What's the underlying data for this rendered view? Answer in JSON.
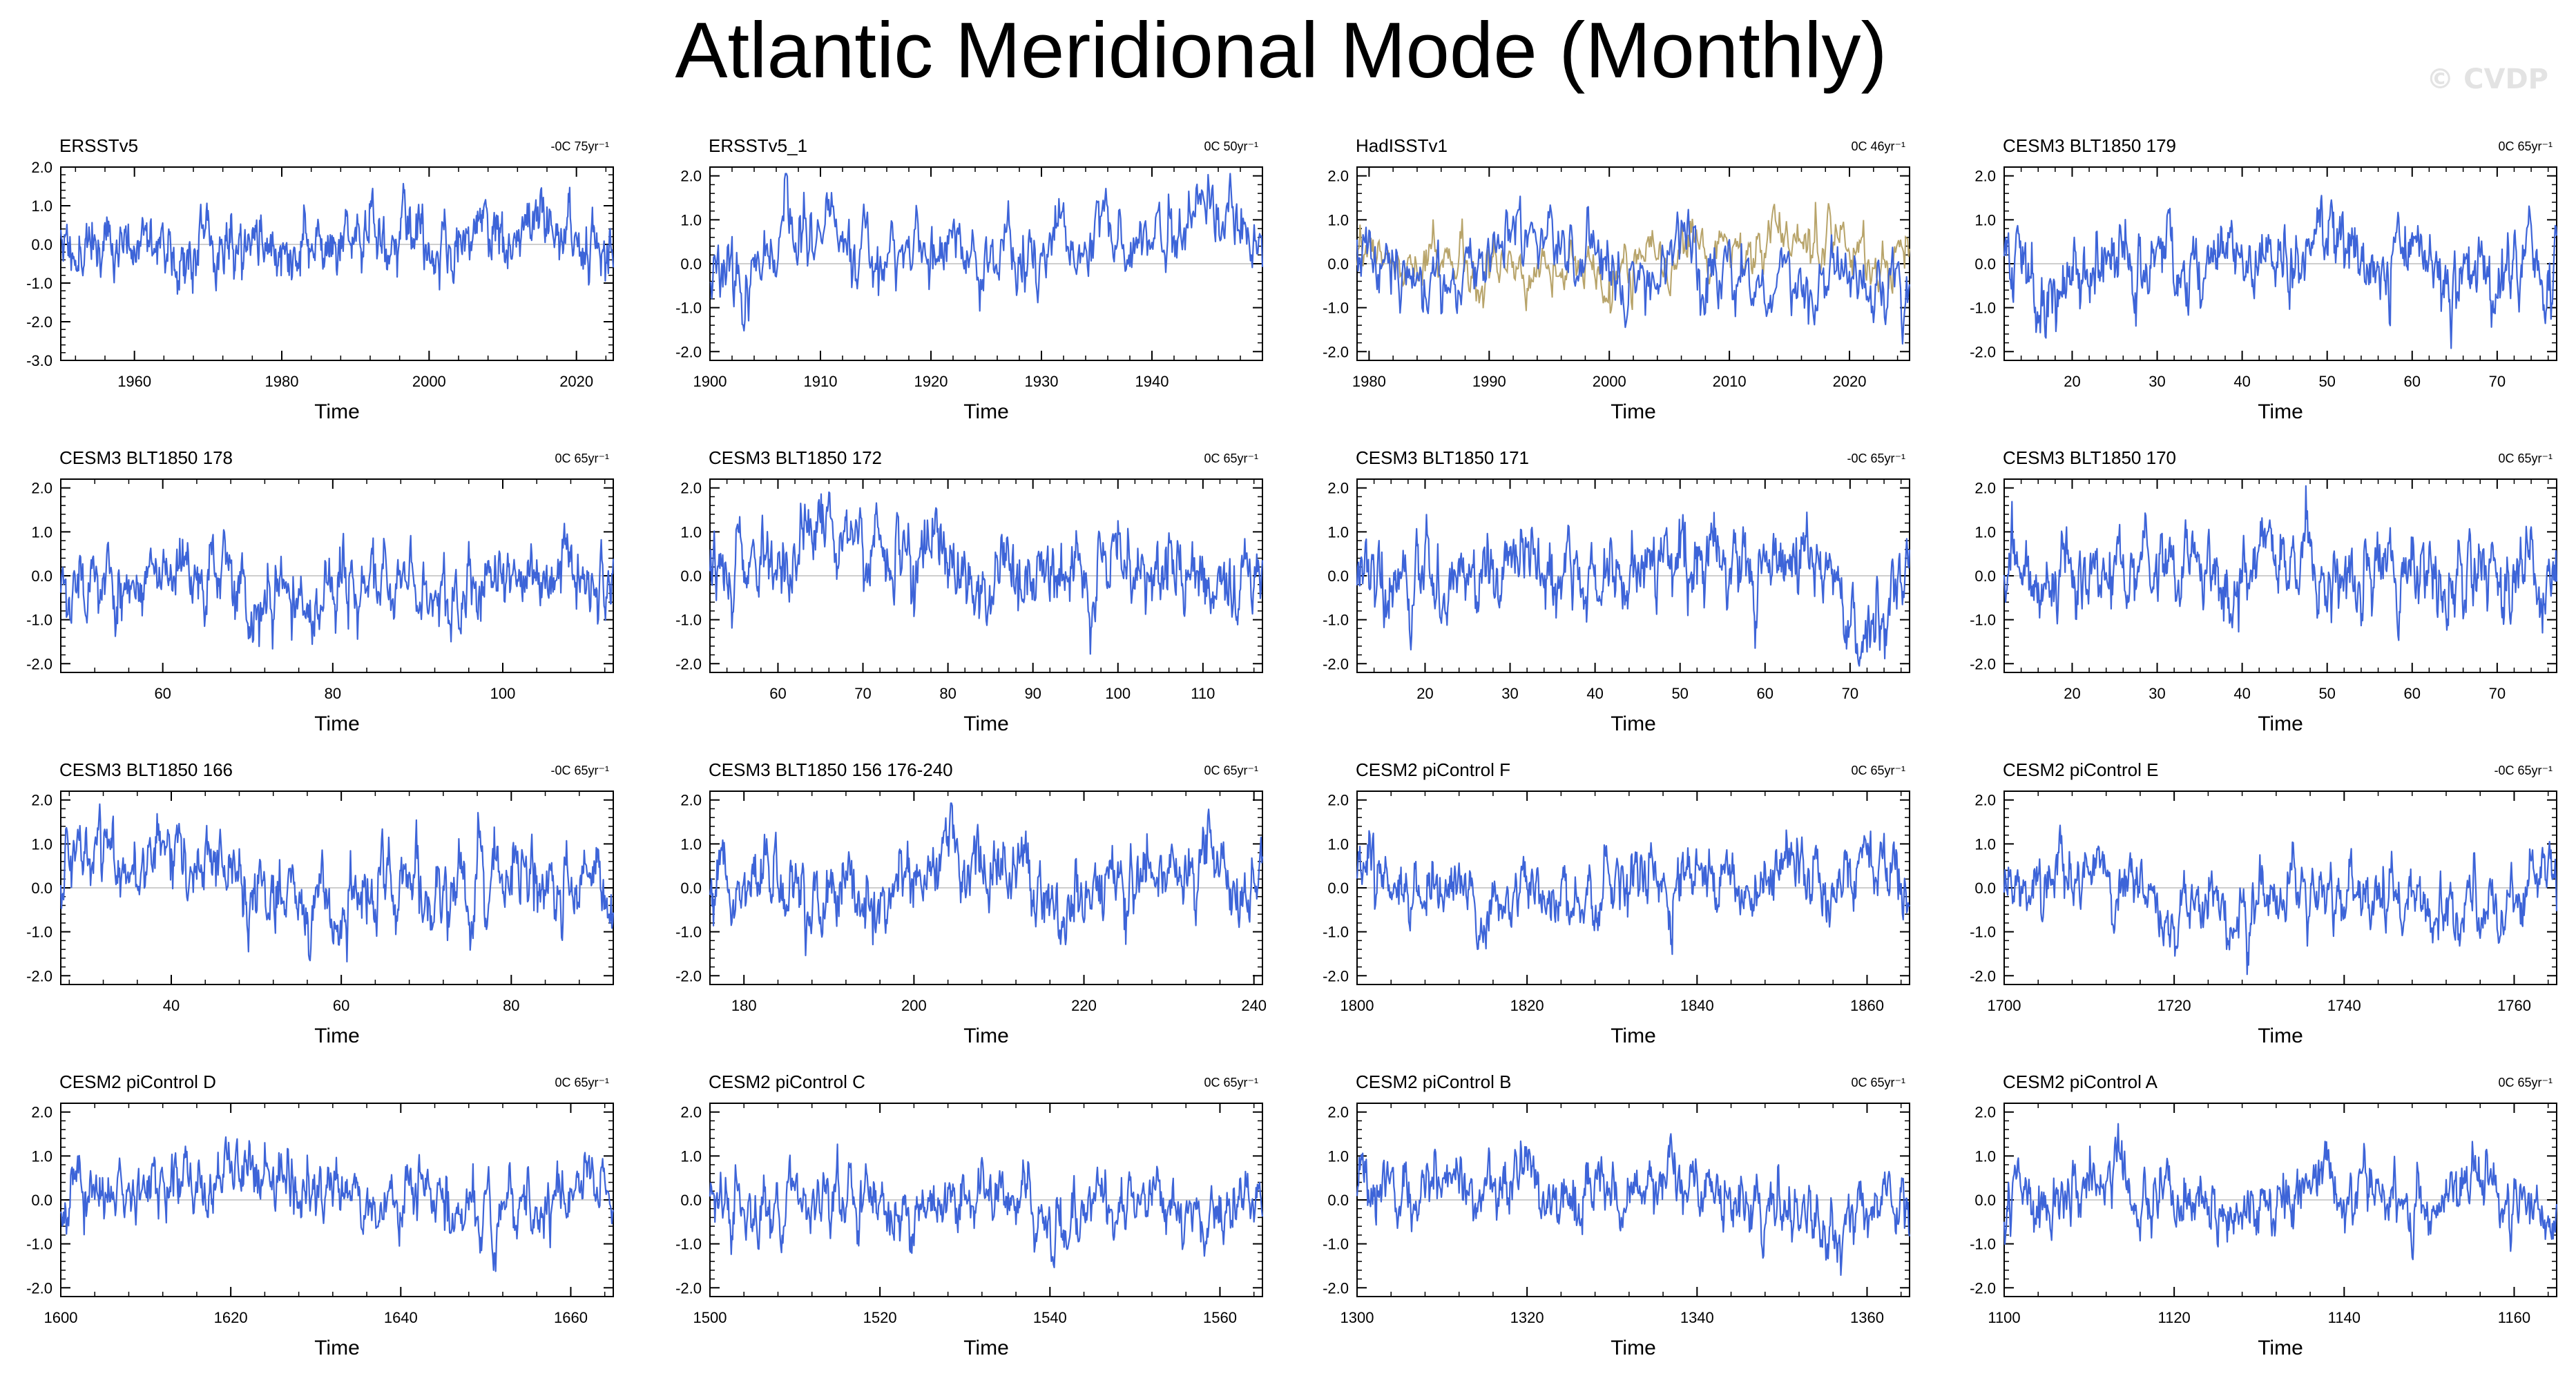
{
  "figure": {
    "title": "Atlantic Meridional Mode (Monthly)",
    "watermark": "© CVDP",
    "line_color": "#3d64d8",
    "obs_overlay_color": "#b8a46a"
  },
  "chart_data": [
    {
      "type": "line",
      "title": "ERSSTv5",
      "trend_label": "-0C 75yr⁻¹",
      "xlabel": "Time",
      "xlim": [
        1950,
        2025
      ],
      "ylim": [
        -3,
        2
      ],
      "yticks": [
        -3,
        -2,
        -1,
        0,
        1,
        2
      ],
      "ytick_labels": [
        "-3.0",
        "-2.0",
        "-1.0",
        "0.0",
        "1.0",
        "2.0"
      ],
      "xticks": [
        1960,
        1980,
        2000,
        2020
      ],
      "xtick_labels": [
        "1960",
        "1980",
        "2000",
        "2020"
      ],
      "amp": 0.55,
      "seed": 11
    },
    {
      "type": "line",
      "title": "ERSSTv5_1",
      "trend_label": "0C 50yr⁻¹",
      "xlabel": "Time",
      "xlim": [
        1900,
        1950
      ],
      "ylim": [
        -2.2,
        2.2
      ],
      "yticks": [
        -2,
        -1,
        0,
        1,
        2
      ],
      "ytick_labels": [
        "-2.0",
        "-1.0",
        "0.0",
        "1.0",
        "2.0"
      ],
      "xticks": [
        1900,
        1910,
        1920,
        1930,
        1940
      ],
      "xtick_labels": [
        "1900",
        "1910",
        "1920",
        "1930",
        "1940"
      ],
      "amp": 0.6,
      "seed": 23
    },
    {
      "type": "line",
      "title": "HadISSTv1",
      "trend_label": "0C 46yr⁻¹",
      "xlabel": "Time",
      "xlim": [
        1979,
        2025
      ],
      "ylim": [
        -2.2,
        2.2
      ],
      "yticks": [
        -2,
        -1,
        0,
        1,
        2
      ],
      "ytick_labels": [
        "-2.0",
        "-1.0",
        "0.0",
        "1.0",
        "2.0"
      ],
      "xticks": [
        1980,
        1990,
        2000,
        2010,
        2020
      ],
      "xtick_labels": [
        "1980",
        "1990",
        "2000",
        "2010",
        "2020"
      ],
      "amp": 0.6,
      "seed": 37,
      "overlay": true
    },
    {
      "type": "line",
      "title": "CESM3 BLT1850 179",
      "trend_label": "0C 65yr⁻¹",
      "xlabel": "Time",
      "xlim": [
        12,
        77
      ],
      "ylim": [
        -2.2,
        2.2
      ],
      "yticks": [
        -2,
        -1,
        0,
        1,
        2
      ],
      "ytick_labels": [
        "-2.0",
        "-1.0",
        "0.0",
        "1.0",
        "2.0"
      ],
      "xticks": [
        20,
        30,
        40,
        50,
        60,
        70
      ],
      "xtick_labels": [
        "20",
        "30",
        "40",
        "50",
        "60",
        "70"
      ],
      "amp": 0.6,
      "seed": 41
    },
    {
      "type": "line",
      "title": "CESM3 BLT1850 178",
      "trend_label": "0C 65yr⁻¹",
      "xlabel": "Time",
      "xlim": [
        48,
        113
      ],
      "ylim": [
        -2.2,
        2.2
      ],
      "yticks": [
        -2,
        -1,
        0,
        1,
        2
      ],
      "ytick_labels": [
        "-2.0",
        "-1.0",
        "0.0",
        "1.0",
        "2.0"
      ],
      "xticks": [
        60,
        80,
        100
      ],
      "xtick_labels": [
        "60",
        "80",
        "100"
      ],
      "amp": 0.6,
      "seed": 53
    },
    {
      "type": "line",
      "title": "CESM3 BLT1850 172",
      "trend_label": "0C 65yr⁻¹",
      "xlabel": "Time",
      "xlim": [
        52,
        117
      ],
      "ylim": [
        -2.2,
        2.2
      ],
      "yticks": [
        -2,
        -1,
        0,
        1,
        2
      ],
      "ytick_labels": [
        "-2.0",
        "-1.0",
        "0.0",
        "1.0",
        "2.0"
      ],
      "xticks": [
        60,
        70,
        80,
        90,
        100,
        110
      ],
      "xtick_labels": [
        "60",
        "70",
        "80",
        "90",
        "100",
        "110"
      ],
      "amp": 0.6,
      "seed": 67
    },
    {
      "type": "line",
      "title": "CESM3 BLT1850 171",
      "trend_label": "-0C 65yr⁻¹",
      "xlabel": "Time",
      "xlim": [
        12,
        77
      ],
      "ylim": [
        -2.2,
        2.2
      ],
      "yticks": [
        -2,
        -1,
        0,
        1,
        2
      ],
      "ytick_labels": [
        "-2.0",
        "-1.0",
        "0.0",
        "1.0",
        "2.0"
      ],
      "xticks": [
        20,
        30,
        40,
        50,
        60,
        70
      ],
      "xtick_labels": [
        "20",
        "30",
        "40",
        "50",
        "60",
        "70"
      ],
      "amp": 0.6,
      "seed": 79
    },
    {
      "type": "line",
      "title": "CESM3 BLT1850 170",
      "trend_label": "0C 65yr⁻¹",
      "xlabel": "Time",
      "xlim": [
        12,
        77
      ],
      "ylim": [
        -2.2,
        2.2
      ],
      "yticks": [
        -2,
        -1,
        0,
        1,
        2
      ],
      "ytick_labels": [
        "-2.0",
        "-1.0",
        "0.0",
        "1.0",
        "2.0"
      ],
      "xticks": [
        20,
        30,
        40,
        50,
        60,
        70
      ],
      "xtick_labels": [
        "20",
        "30",
        "40",
        "50",
        "60",
        "70"
      ],
      "amp": 0.6,
      "seed": 83
    },
    {
      "type": "line",
      "title": "CESM3 BLT1850 166",
      "trend_label": "-0C 65yr⁻¹",
      "xlabel": "Time",
      "xlim": [
        27,
        92
      ],
      "ylim": [
        -2.2,
        2.2
      ],
      "yticks": [
        -2,
        -1,
        0,
        1,
        2
      ],
      "ytick_labels": [
        "-2.0",
        "-1.0",
        "0.0",
        "1.0",
        "2.0"
      ],
      "xticks": [
        40,
        60,
        80
      ],
      "xtick_labels": [
        "40",
        "60",
        "80"
      ],
      "amp": 0.6,
      "seed": 97
    },
    {
      "type": "line",
      "title": "CESM3 BLT1850 156 176-240",
      "trend_label": "0C 65yr⁻¹",
      "xlabel": "Time",
      "xlim": [
        176,
        241
      ],
      "ylim": [
        -2.2,
        2.2
      ],
      "yticks": [
        -2,
        -1,
        0,
        1,
        2
      ],
      "ytick_labels": [
        "-2.0",
        "-1.0",
        "0.0",
        "1.0",
        "2.0"
      ],
      "xticks": [
        180,
        200,
        220,
        240
      ],
      "xtick_labels": [
        "180",
        "200",
        "220",
        "240"
      ],
      "amp": 0.6,
      "seed": 101
    },
    {
      "type": "line",
      "title": "CESM2 piControl F",
      "trend_label": "0C 65yr⁻¹",
      "xlabel": "Time",
      "xlim": [
        1800,
        1865
      ],
      "ylim": [
        -2.2,
        2.2
      ],
      "yticks": [
        -2,
        -1,
        0,
        1,
        2
      ],
      "ytick_labels": [
        "-2.0",
        "-1.0",
        "0.0",
        "1.0",
        "2.0"
      ],
      "xticks": [
        1800,
        1820,
        1840,
        1860
      ],
      "xtick_labels": [
        "1800",
        "1820",
        "1840",
        "1860"
      ],
      "amp": 0.5,
      "seed": 113
    },
    {
      "type": "line",
      "title": "CESM2 piControl E",
      "trend_label": "-0C 65yr⁻¹",
      "xlabel": "Time",
      "xlim": [
        1700,
        1765
      ],
      "ylim": [
        -2.2,
        2.2
      ],
      "yticks": [
        -2,
        -1,
        0,
        1,
        2
      ],
      "ytick_labels": [
        "-2.0",
        "-1.0",
        "0.0",
        "1.0",
        "2.0"
      ],
      "xticks": [
        1700,
        1720,
        1740,
        1760
      ],
      "xtick_labels": [
        "1700",
        "1720",
        "1740",
        "1760"
      ],
      "amp": 0.5,
      "seed": 127
    },
    {
      "type": "line",
      "title": "CESM2 piControl D",
      "trend_label": "0C 65yr⁻¹",
      "xlabel": "Time",
      "xlim": [
        1600,
        1665
      ],
      "ylim": [
        -2.2,
        2.2
      ],
      "yticks": [
        -2,
        -1,
        0,
        1,
        2
      ],
      "ytick_labels": [
        "-2.0",
        "-1.0",
        "0.0",
        "1.0",
        "2.0"
      ],
      "xticks": [
        1600,
        1620,
        1640,
        1660
      ],
      "xtick_labels": [
        "1600",
        "1620",
        "1640",
        "1660"
      ],
      "amp": 0.5,
      "seed": 131
    },
    {
      "type": "line",
      "title": "CESM2 piControl C",
      "trend_label": "0C 65yr⁻¹",
      "xlabel": "Time",
      "xlim": [
        1500,
        1565
      ],
      "ylim": [
        -2.2,
        2.2
      ],
      "yticks": [
        -2,
        -1,
        0,
        1,
        2
      ],
      "ytick_labels": [
        "-2.0",
        "-1.0",
        "0.0",
        "1.0",
        "2.0"
      ],
      "xticks": [
        1500,
        1520,
        1540,
        1560
      ],
      "xtick_labels": [
        "1500",
        "1520",
        "1540",
        "1560"
      ],
      "amp": 0.5,
      "seed": 139
    },
    {
      "type": "line",
      "title": "CESM2 piControl B",
      "trend_label": "0C 65yr⁻¹",
      "xlabel": "Time",
      "xlim": [
        1300,
        1365
      ],
      "ylim": [
        -2.2,
        2.2
      ],
      "yticks": [
        -2,
        -1,
        0,
        1,
        2
      ],
      "ytick_labels": [
        "-2.0",
        "-1.0",
        "0.0",
        "1.0",
        "2.0"
      ],
      "xticks": [
        1300,
        1320,
        1340,
        1360
      ],
      "xtick_labels": [
        "1300",
        "1320",
        "1340",
        "1360"
      ],
      "amp": 0.5,
      "seed": 149
    },
    {
      "type": "line",
      "title": "CESM2 piControl A",
      "trend_label": "0C 65yr⁻¹",
      "xlabel": "Time",
      "xlim": [
        1100,
        1165
      ],
      "ylim": [
        -2.2,
        2.2
      ],
      "yticks": [
        -2,
        -1,
        0,
        1,
        2
      ],
      "ytick_labels": [
        "-2.0",
        "-1.0",
        "0.0",
        "1.0",
        "2.0"
      ],
      "xticks": [
        1100,
        1120,
        1140,
        1160
      ],
      "xtick_labels": [
        "1100",
        "1120",
        "1140",
        "1160"
      ],
      "amp": 0.5,
      "seed": 157
    }
  ]
}
